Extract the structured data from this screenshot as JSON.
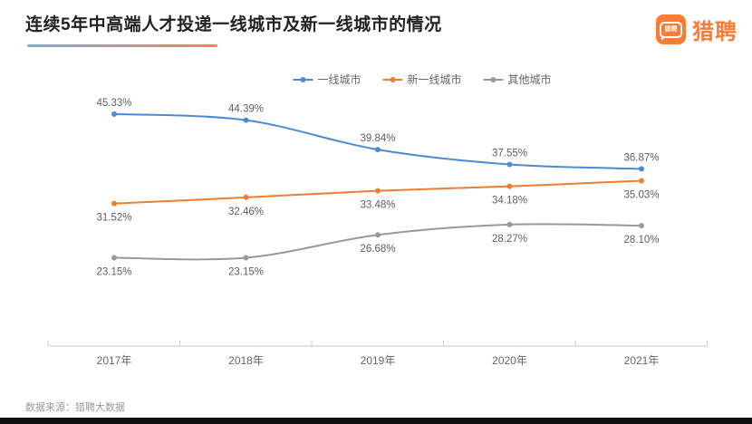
{
  "header": {
    "title": "连续5年中高端人才投递一线城市及新一线城市的情况",
    "logo_text": "猎聘",
    "logo_bubble_text": "猎聘",
    "brand_color": "#fe7b33"
  },
  "footer": {
    "source_text": "数据来源：猎聘大数据"
  },
  "chart_data": {
    "type": "line",
    "title": "连续5年中高端人才投递一线城市及新一线城市的情况",
    "categories": [
      "2017年",
      "2018年",
      "2019年",
      "2020年",
      "2021年"
    ],
    "series": [
      {
        "name": "一线城市",
        "color": "#4c8bd4",
        "values": [
          45.33,
          44.39,
          39.84,
          37.55,
          36.87
        ],
        "label_position": "top"
      },
      {
        "name": "新一线城市",
        "color": "#f07e31",
        "values": [
          31.52,
          32.46,
          33.48,
          34.18,
          35.03
        ],
        "label_position": "bottom"
      },
      {
        "name": "其他城市",
        "color": "#999999",
        "values": [
          23.15,
          23.15,
          26.68,
          28.27,
          28.1
        ],
        "label_position": "bottom"
      }
    ],
    "value_suffix": "%",
    "value_decimals": 2,
    "legend_position": "top",
    "grid": false,
    "smooth": true,
    "ylim": [
      9.5,
      53
    ],
    "axis_color": "#c9c9c9",
    "label_color": "#5e5e5e",
    "tick_label_color": "#666666"
  }
}
